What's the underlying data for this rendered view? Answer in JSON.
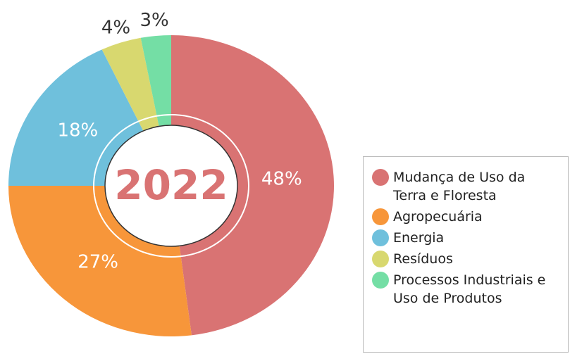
{
  "chart_data": {
    "type": "pie",
    "center_text": "2022",
    "categories": [
      "Mudança de Uso da Terra e Floresta",
      "Agropecuária",
      "Energia",
      "Resíduos",
      "Processos Industriais e Uso de Produtos"
    ],
    "values": [
      48,
      27,
      18,
      4,
      3
    ],
    "value_labels": [
      "48%",
      "27%",
      "18%",
      "4%",
      "3%"
    ],
    "colors": [
      "#d97373",
      "#f7963a",
      "#6fc0dc",
      "#d8d86f",
      "#74dea5"
    ]
  }
}
